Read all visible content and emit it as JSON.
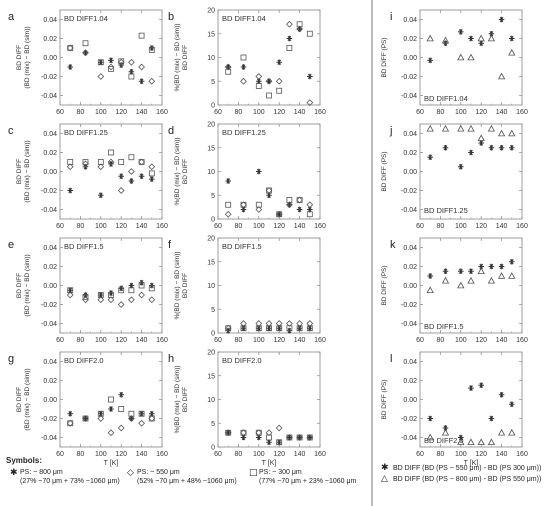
{
  "chart_data": [
    {
      "panel_label": "a",
      "type": "scatter",
      "annotation": "BD DIFF1.04",
      "ylabel": "BD DIFF\n(BD (mix) − BD (sim))",
      "xlabel": "",
      "xlim": [
        60,
        160
      ],
      "ylim": [
        -0.05,
        0.05
      ],
      "xticks": [
        60,
        80,
        100,
        120,
        140,
        160
      ],
      "yticks": [
        -0.04,
        -0.02,
        0.0,
        0.02,
        0.04
      ],
      "ytick_labels": [
        "-0.04",
        "-0.02",
        "0.00",
        "0.02",
        "0.04"
      ],
      "series": [
        {
          "marker": "star",
          "x": [
            70,
            85,
            100,
            110,
            120,
            130,
            140,
            150
          ],
          "y": [
            -0.01,
            0.005,
            -0.005,
            -0.003,
            -0.008,
            -0.015,
            -0.025,
            0.01
          ]
        },
        {
          "marker": "diamond",
          "x": [
            70,
            85,
            100,
            110,
            120,
            130,
            140,
            150
          ],
          "y": [
            0.01,
            0.005,
            -0.02,
            -0.01,
            -0.005,
            -0.005,
            -0.01,
            -0.025
          ]
        },
        {
          "marker": "square",
          "x": [
            70,
            85,
            100,
            110,
            120,
            130,
            140,
            150
          ],
          "y": [
            0.01,
            0.015,
            -0.005,
            -0.012,
            -0.004,
            -0.02,
            0.023,
            0.008
          ]
        }
      ]
    },
    {
      "panel_label": "b",
      "type": "scatter",
      "annotation": "BD DIFF1.04",
      "ylabel": "%(BD (mix) − BD (sim))\nBD DIFF",
      "xlabel": "",
      "xlim": [
        60,
        160
      ],
      "ylim": [
        0,
        20
      ],
      "xticks": [
        60,
        80,
        100,
        120,
        140,
        160
      ],
      "yticks": [
        0,
        5,
        10,
        15,
        20
      ],
      "ytick_labels": [
        "0",
        "5",
        "10",
        "15",
        "20"
      ],
      "series": [
        {
          "marker": "star",
          "x": [
            70,
            85,
            100,
            110,
            120,
            130,
            140,
            150
          ],
          "y": [
            8,
            8,
            5,
            5,
            9,
            14,
            16,
            6
          ]
        },
        {
          "marker": "diamond",
          "x": [
            70,
            85,
            100,
            110,
            120,
            130,
            140,
            150
          ],
          "y": [
            8,
            5,
            6,
            5,
            5,
            17,
            16,
            0.5
          ]
        },
        {
          "marker": "square",
          "x": [
            70,
            85,
            100,
            110,
            120,
            130,
            140,
            150
          ],
          "y": [
            7,
            10,
            4,
            2,
            3,
            12,
            17,
            15
          ]
        }
      ]
    },
    {
      "panel_label": "c",
      "type": "scatter",
      "annotation": "BD DIFF1.25",
      "ylabel": "BD DIFF\n(BD (mix) − BD (sim))",
      "xlabel": "",
      "xlim": [
        60,
        160
      ],
      "ylim": [
        -0.05,
        0.05
      ],
      "xticks": [
        60,
        80,
        100,
        120,
        140,
        160
      ],
      "yticks": [
        -0.04,
        -0.02,
        0.0,
        0.02,
        0.04
      ],
      "ytick_labels": [
        "-0.04",
        "-0.02",
        "0.00",
        "0.02",
        "0.04"
      ],
      "series": [
        {
          "marker": "star",
          "x": [
            70,
            85,
            100,
            110,
            120,
            130,
            140,
            150
          ],
          "y": [
            -0.02,
            0.005,
            -0.025,
            0.008,
            -0.005,
            -0.01,
            -0.005,
            -0.008
          ]
        },
        {
          "marker": "diamond",
          "x": [
            70,
            85,
            100,
            110,
            120,
            130,
            140,
            150
          ],
          "y": [
            0.005,
            0.008,
            0.005,
            0.01,
            -0.02,
            0.0,
            0.01,
            0.005
          ]
        },
        {
          "marker": "square",
          "x": [
            70,
            85,
            100,
            110,
            120,
            130,
            140,
            150
          ],
          "y": [
            0.01,
            0.01,
            0.01,
            0.02,
            0.01,
            0.015,
            0.01,
            -0.002
          ]
        }
      ]
    },
    {
      "panel_label": "d",
      "type": "scatter",
      "annotation": "BD DIFF1.25",
      "ylabel": "%(BD (mix) − BD (sim))\nBD DIFF",
      "xlabel": "",
      "xlim": [
        60,
        160
      ],
      "ylim": [
        0,
        20
      ],
      "xticks": [
        60,
        80,
        100,
        120,
        140,
        160
      ],
      "yticks": [
        0,
        5,
        10,
        15,
        20
      ],
      "ytick_labels": [
        "0",
        "5",
        "10",
        "15",
        "20"
      ],
      "series": [
        {
          "marker": "star",
          "x": [
            70,
            85,
            100,
            110,
            120,
            130,
            140,
            150
          ],
          "y": [
            8,
            2,
            10,
            5,
            1,
            3,
            2,
            2
          ]
        },
        {
          "marker": "diamond",
          "x": [
            70,
            85,
            100,
            110,
            120,
            130,
            140,
            150
          ],
          "y": [
            1,
            3,
            2,
            6,
            1,
            3,
            4,
            3
          ]
        },
        {
          "marker": "square",
          "x": [
            70,
            85,
            100,
            110,
            120,
            130,
            140,
            150
          ],
          "y": [
            3,
            3,
            3,
            6,
            1,
            4,
            4,
            1
          ]
        }
      ]
    },
    {
      "panel_label": "e",
      "type": "scatter",
      "annotation": "BD DIFF1.5",
      "ylabel": "BD DIFF\n(BD (mix) − BD (sim))",
      "xlabel": "",
      "xlim": [
        60,
        160
      ],
      "ylim": [
        -0.05,
        0.05
      ],
      "xticks": [
        60,
        80,
        100,
        120,
        140,
        160
      ],
      "yticks": [
        -0.04,
        -0.02,
        0.0,
        0.02,
        0.04
      ],
      "ytick_labels": [
        "-0.04",
        "-0.02",
        "0.00",
        "0.02",
        "0.04"
      ],
      "series": [
        {
          "marker": "star",
          "x": [
            70,
            85,
            100,
            110,
            120,
            130,
            140,
            150
          ],
          "y": [
            -0.005,
            -0.01,
            -0.01,
            -0.008,
            -0.003,
            0.0,
            0.003,
            0.0
          ]
        },
        {
          "marker": "diamond",
          "x": [
            70,
            85,
            100,
            110,
            120,
            130,
            140,
            150
          ],
          "y": [
            -0.01,
            -0.015,
            -0.015,
            -0.015,
            -0.02,
            -0.015,
            -0.01,
            -0.015
          ]
        },
        {
          "marker": "square",
          "x": [
            70,
            85,
            100,
            110,
            120,
            130,
            140,
            150
          ],
          "y": [
            -0.005,
            -0.012,
            -0.01,
            -0.01,
            -0.005,
            -0.005,
            0.0,
            -0.003
          ]
        }
      ]
    },
    {
      "panel_label": "f",
      "type": "scatter",
      "annotation": "BD DIFF1.5",
      "ylabel": "%(BD (mix) − BD (sim))\nBD DIFF",
      "xlabel": "",
      "xlim": [
        60,
        160
      ],
      "ylim": [
        0,
        20
      ],
      "xticks": [
        60,
        80,
        100,
        120,
        140,
        160
      ],
      "yticks": [
        0,
        5,
        10,
        15,
        20
      ],
      "ytick_labels": [
        "0",
        "5",
        "10",
        "15",
        "20"
      ],
      "series": [
        {
          "marker": "star",
          "x": [
            70,
            85,
            100,
            110,
            120,
            130,
            140,
            150
          ],
          "y": [
            0.5,
            1,
            1,
            1,
            1,
            0.5,
            1,
            1
          ]
        },
        {
          "marker": "diamond",
          "x": [
            70,
            85,
            100,
            110,
            120,
            130,
            140,
            150
          ],
          "y": [
            1,
            2,
            2,
            2,
            2,
            2,
            2,
            2
          ]
        },
        {
          "marker": "square",
          "x": [
            70,
            85,
            100,
            110,
            120,
            130,
            140,
            150
          ],
          "y": [
            1,
            1,
            1,
            1,
            1,
            1,
            1,
            1
          ]
        }
      ]
    },
    {
      "panel_label": "g",
      "type": "scatter",
      "annotation": "BD DIFF2.0",
      "ylabel": "BD DIFF\n(BD (mix) − BD (sim))",
      "xlabel": "T [K]",
      "xlim": [
        60,
        160
      ],
      "ylim": [
        -0.05,
        0.05
      ],
      "xticks": [
        60,
        80,
        100,
        120,
        140,
        160
      ],
      "yticks": [
        -0.04,
        -0.02,
        0.0,
        0.02,
        0.04
      ],
      "ytick_labels": [
        "-0.04",
        "-0.02",
        "0.00",
        "0.02",
        "0.04"
      ],
      "series": [
        {
          "marker": "star",
          "x": [
            70,
            85,
            100,
            110,
            120,
            130,
            140,
            150
          ],
          "y": [
            -0.015,
            -0.02,
            -0.015,
            -0.01,
            0.005,
            -0.02,
            -0.015,
            -0.015
          ]
        },
        {
          "marker": "diamond",
          "x": [
            70,
            85,
            100,
            110,
            120,
            130,
            140,
            150
          ],
          "y": [
            -0.025,
            -0.02,
            -0.02,
            -0.035,
            -0.03,
            -0.02,
            -0.025,
            -0.02
          ]
        },
        {
          "marker": "square",
          "x": [
            70,
            85,
            100,
            110,
            120,
            130,
            140,
            150
          ],
          "y": [
            -0.025,
            -0.02,
            -0.015,
            0.0,
            -0.01,
            -0.015,
            -0.015,
            -0.02
          ]
        }
      ]
    },
    {
      "panel_label": "h",
      "type": "scatter",
      "annotation": "BD DIFF2.0",
      "ylabel": "%(BD (mix) − BD (sim))\nBD DIFF",
      "xlabel": "T [K]",
      "xlim": [
        60,
        160
      ],
      "ylim": [
        0,
        20
      ],
      "xticks": [
        60,
        80,
        100,
        120,
        140,
        160
      ],
      "yticks": [
        0,
        5,
        10,
        15,
        20
      ],
      "ytick_labels": [
        "0",
        "5",
        "10",
        "15",
        "20"
      ],
      "series": [
        {
          "marker": "star",
          "x": [
            70,
            85,
            100,
            110,
            120,
            130,
            140,
            150
          ],
          "y": [
            3,
            2,
            2,
            1,
            1,
            2,
            2,
            2
          ]
        },
        {
          "marker": "diamond",
          "x": [
            70,
            85,
            100,
            110,
            120,
            130,
            140,
            150
          ],
          "y": [
            3,
            3,
            3,
            3,
            4,
            2,
            2,
            2
          ]
        },
        {
          "marker": "square",
          "x": [
            70,
            85,
            100,
            110,
            120,
            130,
            140,
            150
          ],
          "y": [
            3,
            3,
            3,
            2,
            1,
            2,
            2,
            2
          ]
        }
      ]
    },
    {
      "panel_label": "i",
      "type": "scatter",
      "annotation": "BD DIFF1.04",
      "ylabel": "BD DIFF (PS)",
      "xlabel": "",
      "xlim": [
        60,
        160
      ],
      "ylim": [
        -0.05,
        0.05
      ],
      "xticks": [
        60,
        80,
        100,
        120,
        140,
        160
      ],
      "yticks": [
        -0.04,
        -0.02,
        0.0,
        0.02,
        0.04
      ],
      "ytick_labels": [
        "-0.04",
        "-0.02",
        "0.00",
        "0.02",
        "0.04"
      ],
      "series": [
        {
          "marker": "star",
          "x": [
            70,
            85,
            100,
            110,
            120,
            130,
            140,
            150
          ],
          "y": [
            -0.003,
            0.015,
            0.027,
            0.02,
            0.015,
            0.025,
            0.04,
            0.02
          ]
        },
        {
          "marker": "triangle",
          "x": [
            70,
            85,
            100,
            110,
            120,
            130,
            140,
            150
          ],
          "y": [
            0.02,
            0.018,
            0.0,
            0.0,
            0.02,
            0.02,
            -0.02,
            0.005
          ]
        }
      ]
    },
    {
      "panel_label": "j",
      "type": "scatter",
      "annotation": "BD DIFF1.25",
      "ylabel": "BD DIFF (PS)",
      "xlabel": "",
      "xlim": [
        60,
        160
      ],
      "ylim": [
        -0.05,
        0.05
      ],
      "xticks": [
        60,
        80,
        100,
        120,
        140,
        160
      ],
      "yticks": [
        -0.04,
        -0.02,
        0.0,
        0.02,
        0.04
      ],
      "ytick_labels": [
        "-0.04",
        "-0.02",
        "0.00",
        "0.02",
        "0.04"
      ],
      "series": [
        {
          "marker": "star",
          "x": [
            70,
            85,
            100,
            110,
            120,
            130,
            140,
            150
          ],
          "y": [
            0.015,
            0.025,
            0.005,
            0.02,
            0.03,
            0.025,
            0.025,
            0.025
          ]
        },
        {
          "marker": "triangle",
          "x": [
            70,
            85,
            100,
            110,
            120,
            130,
            140,
            150
          ],
          "y": [
            0.045,
            0.045,
            0.045,
            0.045,
            0.035,
            0.045,
            0.04,
            0.04
          ]
        }
      ]
    },
    {
      "panel_label": "k",
      "type": "scatter",
      "annotation": "BD DIFF1.5",
      "ylabel": "BD DIFF (PS)",
      "xlabel": "",
      "xlim": [
        60,
        160
      ],
      "ylim": [
        -0.05,
        0.05
      ],
      "xticks": [
        60,
        80,
        100,
        120,
        140,
        160
      ],
      "yticks": [
        -0.04,
        -0.02,
        0.0,
        0.02,
        0.04
      ],
      "ytick_labels": [
        "-0.04",
        "-0.02",
        "0.00",
        "0.02",
        "0.04"
      ],
      "series": [
        {
          "marker": "star",
          "x": [
            70,
            85,
            100,
            110,
            120,
            130,
            140,
            150
          ],
          "y": [
            0.01,
            0.015,
            0.015,
            0.015,
            0.02,
            0.02,
            0.02,
            0.025
          ]
        },
        {
          "marker": "triangle",
          "x": [
            70,
            85,
            100,
            110,
            120,
            130,
            140,
            150
          ],
          "y": [
            -0.005,
            0.005,
            0.0,
            0.005,
            0.015,
            0.005,
            0.01,
            0.01
          ]
        }
      ]
    },
    {
      "panel_label": "l",
      "type": "scatter",
      "annotation": "BD DIFF2.0",
      "ylabel": "BD DIFF (PS)",
      "xlabel": "T [K]",
      "xlim": [
        60,
        160
      ],
      "ylim": [
        -0.05,
        0.05
      ],
      "xticks": [
        60,
        80,
        100,
        120,
        140,
        160
      ],
      "yticks": [
        -0.04,
        -0.02,
        0.0,
        0.02,
        0.04
      ],
      "ytick_labels": [
        "-0.04",
        "-0.02",
        "0.00",
        "0.02",
        "0.04"
      ],
      "series": [
        {
          "marker": "star",
          "x": [
            70,
            85,
            100,
            110,
            120,
            130,
            140,
            150
          ],
          "y": [
            -0.02,
            -0.03,
            -0.04,
            0.012,
            0.015,
            -0.02,
            0.005,
            -0.005
          ]
        },
        {
          "marker": "triangle",
          "x": [
            70,
            85,
            100,
            110,
            120,
            130,
            140,
            150
          ],
          "y": [
            -0.04,
            -0.035,
            -0.045,
            -0.045,
            -0.045,
            -0.045,
            -0.035,
            -0.035
          ]
        }
      ]
    }
  ],
  "legend": {
    "title": "Symbols:",
    "star_line1": "PS: ~ 800 μm",
    "star_line2": "(27% ~70 μm + 73% ~1060 μm)",
    "diamond_line1": "PS: ~ 550 μm",
    "diamond_line2": "(52% ~70 μm + 48% ~1060 μm)",
    "square_line1": "PS: ~ 300 μm",
    "square_line2": "(77% ~70 μm + 23% ~1060 μm",
    "ps_star": "BD DIFF (BD (PS ~ 550 μm) - BD (PS 300 μm))",
    "ps_triangle": "BD DIFF (BD (PS ~ 800 μm) - BD (PS 550 μm))"
  }
}
